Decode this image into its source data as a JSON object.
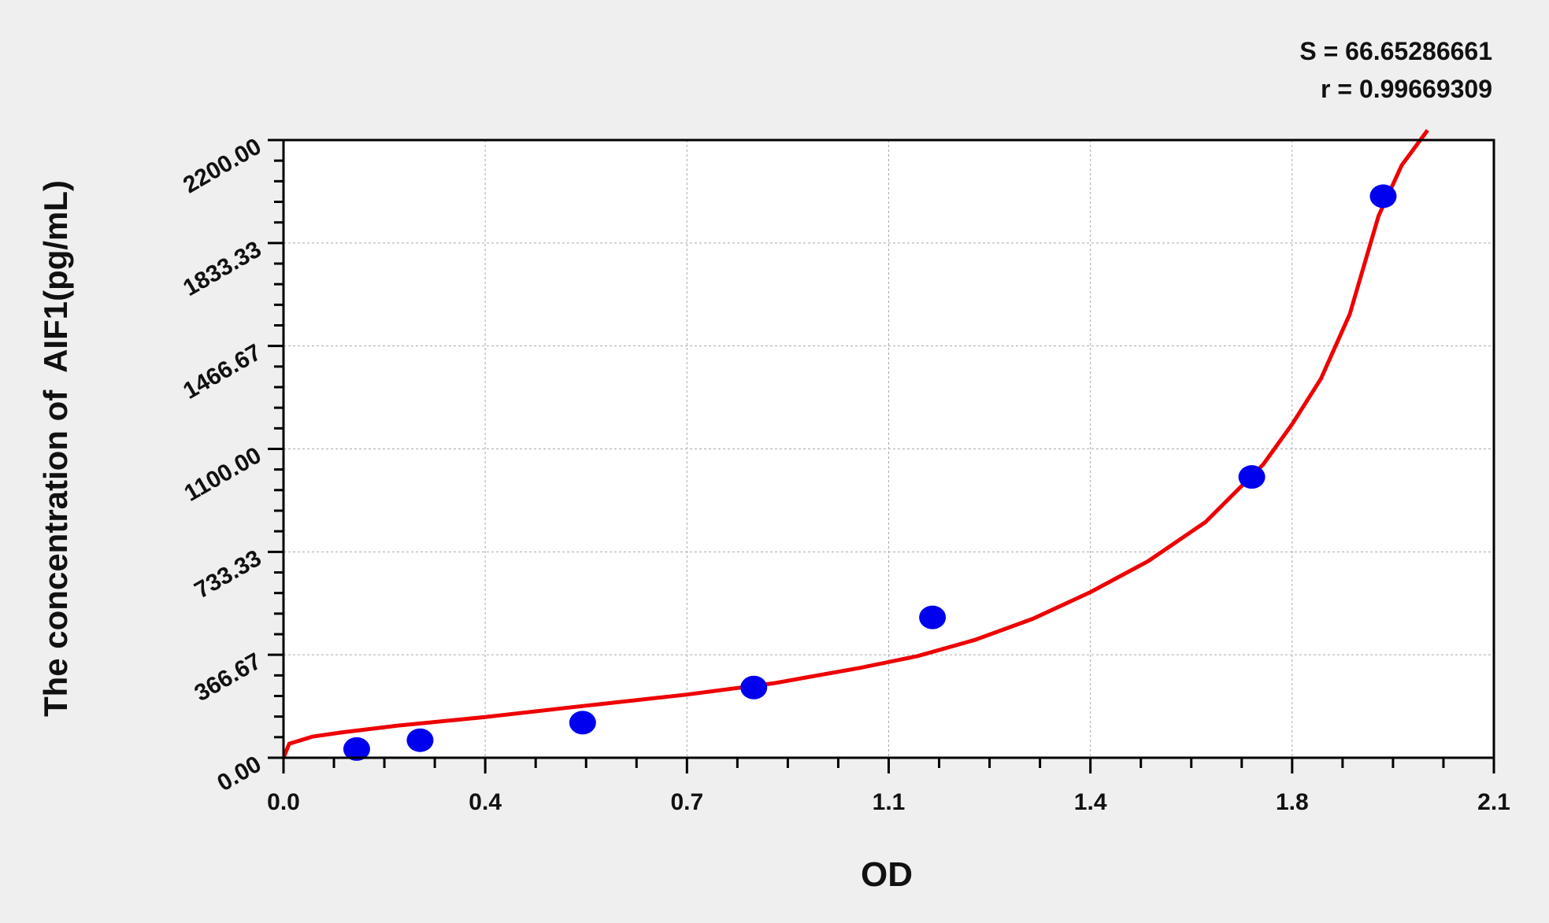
{
  "chart_data": {
    "type": "scatter",
    "title": "",
    "xlabel": "OD",
    "ylabel": "The concentration of  AIF1(pg/mL)",
    "xlim": [
      0,
      2.1
    ],
    "ylim": [
      0,
      2200
    ],
    "x_ticks": [
      0,
      0.35,
      0.7,
      1.05,
      1.4,
      1.75,
      2.1
    ],
    "x_tick_labels": [
      "0.0",
      "0.4",
      "0.7",
      "1.1",
      "1.4",
      "1.8",
      "2.1"
    ],
    "y_ticks": [
      0,
      366.67,
      733.33,
      1100,
      1466.67,
      1833.33,
      2200
    ],
    "y_tick_labels": [
      "0.00",
      "366.67",
      "733.33",
      "1100.00",
      "1466.67",
      "1833.33",
      "2200.00"
    ],
    "grid": true,
    "annotations": [
      "S = 66.65286661",
      "r = 0.99669309"
    ],
    "points": {
      "color": "#0000ee",
      "x": [
        0.127,
        0.237,
        0.519,
        0.816,
        1.126,
        1.68,
        1.908
      ],
      "y": [
        31.25,
        62.5,
        125,
        250,
        500,
        1000,
        2000
      ]
    },
    "fit_curve": {
      "color": "#ee0000",
      "x": [
        0,
        0.01,
        0.05,
        0.1,
        0.2,
        0.35,
        0.5,
        0.7,
        0.85,
        1.0,
        1.1,
        1.2,
        1.3,
        1.4,
        1.5,
        1.6,
        1.7,
        1.75,
        1.8,
        1.85,
        1.9,
        1.94,
        1.985
      ],
      "y": [
        0,
        50,
        75,
        90,
        115,
        145,
        180,
        225,
        265,
        320,
        362,
        420,
        495,
        590,
        700,
        840,
        1045,
        1188,
        1350,
        1580,
        1930,
        2110,
        2235
      ]
    }
  }
}
